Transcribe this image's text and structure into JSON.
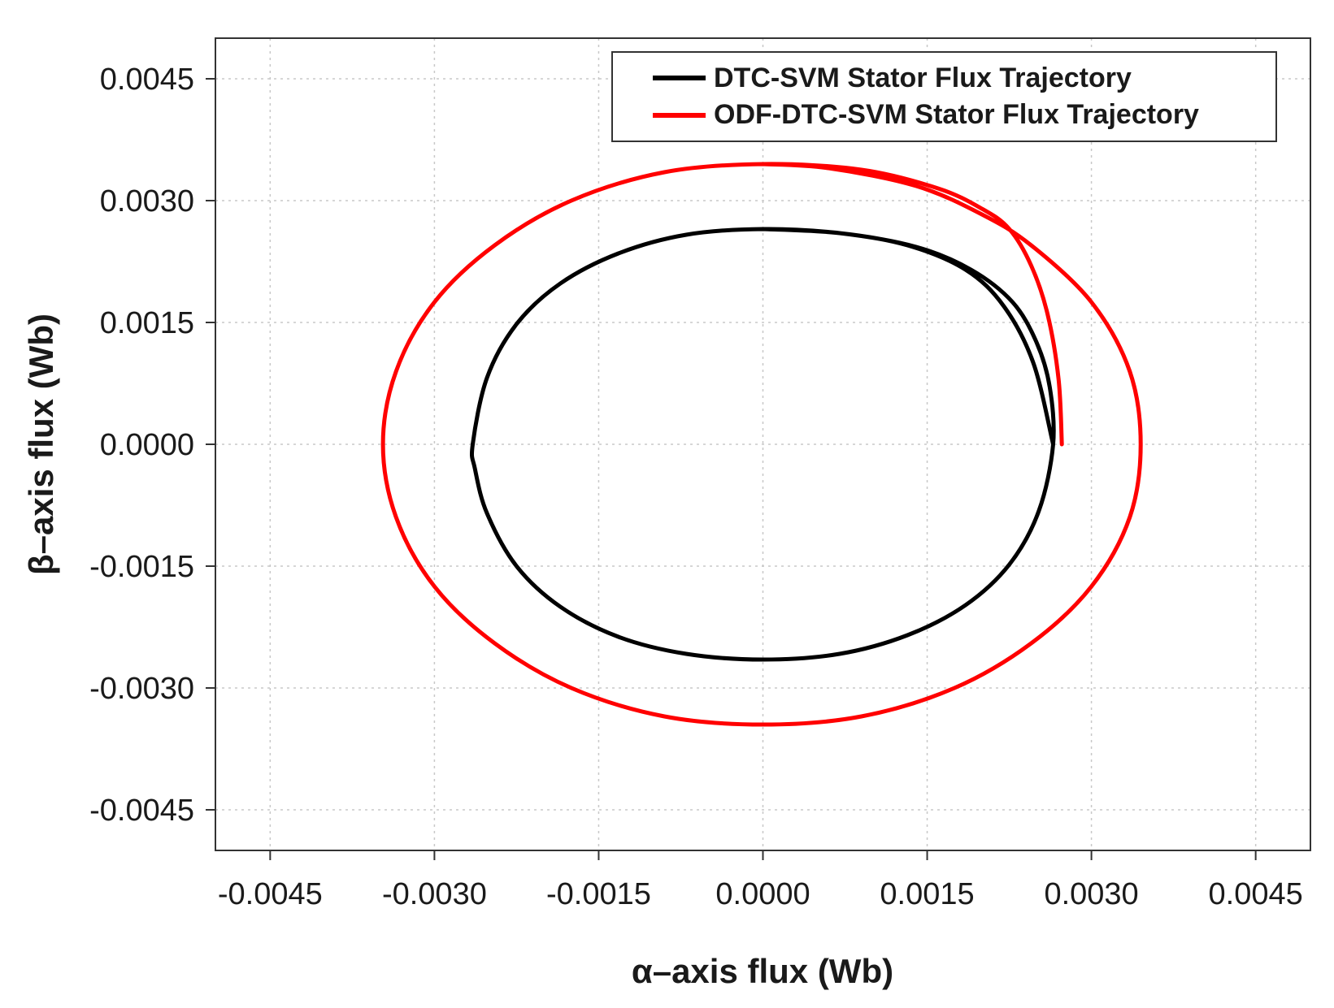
{
  "chart_data": {
    "type": "line",
    "xlabel": "α–axis flux (Wb)",
    "ylabel": "β–axis flux (Wb)",
    "xlim": [
      -0.005,
      0.005
    ],
    "ylim": [
      -0.005,
      0.005
    ],
    "xticks": [
      -0.0045,
      -0.003,
      -0.0015,
      0.0,
      0.0015,
      0.003,
      0.0045
    ],
    "yticks": [
      -0.0045,
      -0.003,
      -0.0015,
      0.0,
      0.0015,
      0.003,
      0.0045
    ],
    "xtick_labels": [
      "-0.0045",
      "-0.0030",
      "-0.0015",
      "0.0000",
      "0.0015",
      "0.0030",
      "0.0045"
    ],
    "ytick_labels": [
      "-0.0045",
      "-0.0030",
      "-0.0015",
      "0.0000",
      "0.0015",
      "0.0030",
      "0.0045"
    ],
    "grid": true,
    "legend_position": "top-right",
    "series": [
      {
        "name": "DTC-SVM Stator Flux Trajectory",
        "color": "#000000",
        "x": [
          0.00265,
          0.00247,
          0.0022,
          0.00185,
          0.00132,
          0.0007,
          0.0,
          -0.0007,
          -0.00132,
          -0.00185,
          -0.00225,
          -0.00252,
          -0.00265,
          -0.00263,
          -0.00252,
          -0.00225,
          -0.00185,
          -0.00132,
          -0.0007,
          0.0,
          0.0007,
          0.00132,
          0.00185,
          0.00225,
          0.00252,
          0.00265,
          0.00262,
          0.0025,
          0.00228,
          0.0019,
          0.0014,
          0.0007,
          0.0
        ],
        "y": [
          0.0,
          0.001,
          0.0017,
          0.00215,
          0.00245,
          0.0026,
          0.00265,
          0.00258,
          0.00235,
          0.00198,
          0.00148,
          0.00082,
          0.0,
          -0.0003,
          -0.00085,
          -0.0015,
          -0.002,
          -0.00237,
          -0.00258,
          -0.00265,
          -0.00258,
          -0.00235,
          -0.00198,
          -0.00148,
          -0.00082,
          0.0,
          0.0007,
          0.00125,
          0.00175,
          0.00215,
          0.00243,
          0.0026,
          0.00265
        ]
      },
      {
        "name": "ODF-DTC-SVM Stator Flux Trajectory",
        "color": "#ff0000",
        "x": [
          0.00273,
          0.0027,
          0.0026,
          0.00245,
          0.00225,
          0.002,
          0.0016,
          0.0009,
          0.0,
          -0.0009,
          -0.00175,
          -0.00245,
          -0.003,
          -0.00335,
          -0.00347,
          -0.00335,
          -0.003,
          -0.00245,
          -0.00175,
          -0.0009,
          0.0,
          0.0009,
          0.00175,
          0.00245,
          0.003,
          0.00335,
          0.00345,
          0.00335,
          0.003,
          0.00245,
          0.002,
          0.0014,
          0.0006,
          0.0
        ],
        "y": [
          0.0,
          0.0008,
          0.0016,
          0.0022,
          0.00265,
          0.0029,
          0.00315,
          0.00338,
          0.00345,
          0.00335,
          0.003,
          0.00245,
          0.00175,
          0.0009,
          0.0,
          -0.0009,
          -0.00175,
          -0.00245,
          -0.003,
          -0.00335,
          -0.00345,
          -0.00335,
          -0.003,
          -0.00245,
          -0.00175,
          -0.0009,
          0.0,
          0.0009,
          0.00175,
          0.00245,
          0.00283,
          0.00318,
          0.0034,
          0.00345
        ]
      }
    ]
  }
}
